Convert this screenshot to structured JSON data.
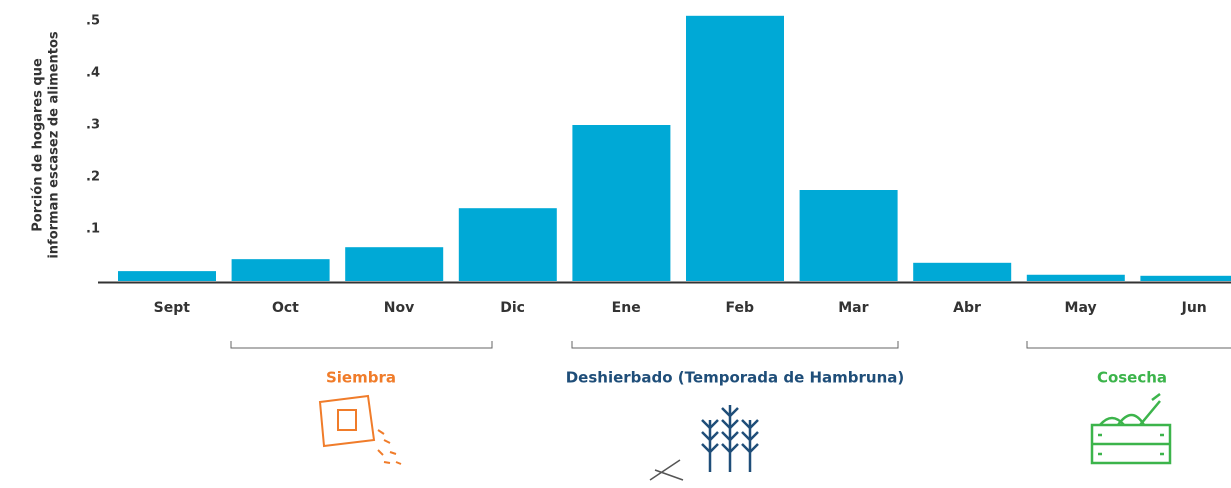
{
  "chart_data": {
    "type": "bar",
    "y_label": [
      "Porción de hogares que",
      "informan escasez de alimentos"
    ],
    "categories": [
      "Sept",
      "Oct",
      "Nov",
      "Dic",
      "Ene",
      "Feb",
      "Mar",
      "Abr",
      "May",
      "Jun"
    ],
    "values": [
      0.019,
      0.042,
      0.065,
      0.14,
      0.3,
      0.51,
      0.175,
      0.035,
      0.012,
      0.01
    ],
    "color": "#00a9d6",
    "ylim": [
      0,
      0.52
    ],
    "yticks": [
      {
        "value": 0.1,
        "label": ".1"
      },
      {
        "value": 0.2,
        "label": ".2"
      },
      {
        "value": 0.3,
        "label": ".3"
      },
      {
        "value": 0.4,
        "label": ".4"
      },
      {
        "value": 0.5,
        "label": ".5"
      }
    ],
    "seasons": [
      {
        "label": "Siembra",
        "color": "#f07c2a"
      },
      {
        "label": "Deshierbado (Temporada de Hambruna)",
        "color": "#1f4e79"
      },
      {
        "label": "Cosecha",
        "color": "#3cb44b"
      }
    ]
  }
}
